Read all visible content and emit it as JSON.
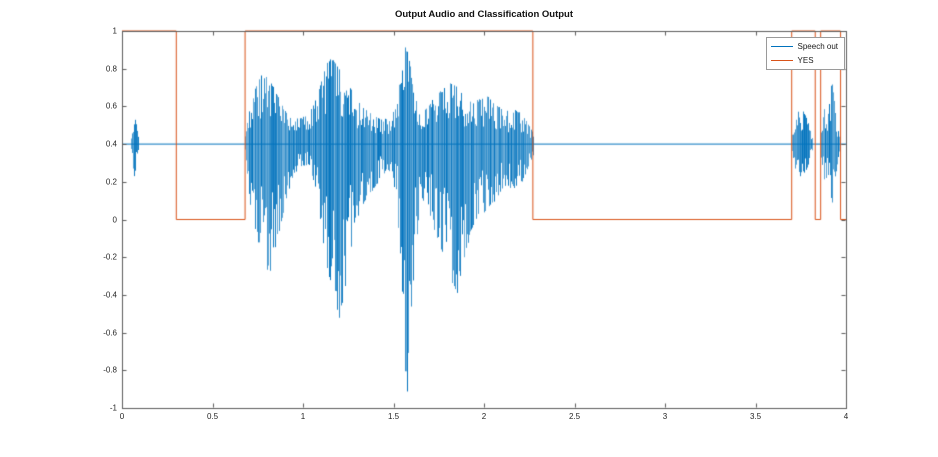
{
  "chart": {
    "title": "Output Audio and Classification Output",
    "legend": {
      "items": [
        {
          "label": "Speech out",
          "color": "#0072BD"
        },
        {
          "label": "YES",
          "color": "#D95319"
        }
      ]
    }
  },
  "chart_data": {
    "type": "line",
    "title": "Output Audio and Classification Output",
    "xlabel": "",
    "ylabel": "",
    "xlim": [
      0,
      4
    ],
    "ylim": [
      -1,
      1
    ],
    "xticks": [
      0,
      0.5,
      1,
      1.5,
      2,
      2.5,
      3,
      3.5,
      4
    ],
    "yticks": [
      -1,
      -0.8,
      -0.6,
      -0.4,
      -0.2,
      0,
      0.2,
      0.4,
      0.6,
      0.8,
      1
    ],
    "grid": false,
    "legend_position": "top-right",
    "axis_color": "#5b5b5b",
    "series": [
      {
        "name": "Speech out",
        "kind": "waveform",
        "color": "#0072BD",
        "baseline": 0.4,
        "bursts": [
          {
            "x": [
              0.05,
              0.065,
              0.075,
              0.09
            ],
            "upper": [
              0.44,
              0.56,
              0.52,
              0.43
            ],
            "lower": [
              0.36,
              0.22,
              0.27,
              0.37
            ]
          },
          {
            "x": [
              0.68,
              0.71,
              0.75,
              0.78,
              0.82,
              0.86,
              0.9,
              0.94,
              0.98,
              1.03,
              1.08,
              1.12,
              1.16,
              1.2,
              1.24,
              1.28,
              1.33,
              1.38,
              1.43,
              1.48,
              1.52,
              1.55,
              1.58,
              1.61,
              1.65,
              1.69,
              1.73,
              1.77,
              1.81,
              1.85,
              1.89,
              1.93,
              1.97,
              2.01,
              2.06,
              2.11,
              2.16,
              2.21,
              2.27
            ],
            "upper": [
              0.46,
              0.62,
              0.74,
              0.78,
              0.73,
              0.66,
              0.58,
              0.53,
              0.54,
              0.56,
              0.66,
              0.82,
              0.86,
              0.8,
              0.74,
              0.66,
              0.6,
              0.56,
              0.53,
              0.54,
              0.62,
              0.93,
              0.9,
              0.68,
              0.56,
              0.6,
              0.66,
              0.7,
              0.73,
              0.71,
              0.66,
              0.62,
              0.64,
              0.66,
              0.62,
              0.57,
              0.59,
              0.56,
              0.46
            ],
            "lower": [
              0.34,
              0.05,
              -0.12,
              -0.27,
              -0.29,
              -0.1,
              0.08,
              0.22,
              0.28,
              0.29,
              0.12,
              -0.22,
              -0.38,
              -0.54,
              -0.34,
              -0.05,
              0.08,
              0.15,
              0.22,
              0.26,
              0.1,
              -0.88,
              -0.96,
              -0.3,
              0.12,
              0.05,
              -0.08,
              -0.2,
              -0.3,
              -0.42,
              -0.22,
              -0.05,
              0.02,
              0.04,
              0.1,
              0.18,
              0.16,
              0.2,
              0.34
            ]
          },
          {
            "x": [
              3.7,
              3.72,
              3.75,
              3.78,
              3.81
            ],
            "upper": [
              0.44,
              0.56,
              0.59,
              0.55,
              0.44
            ],
            "lower": [
              0.36,
              0.26,
              0.22,
              0.26,
              0.35
            ]
          },
          {
            "x": [
              3.86,
              3.88,
              3.9,
              3.92,
              3.94,
              3.96
            ],
            "upper": [
              0.45,
              0.6,
              0.56,
              0.74,
              0.58,
              0.44
            ],
            "lower": [
              0.34,
              0.2,
              0.24,
              0.07,
              0.22,
              0.36
            ]
          }
        ]
      },
      {
        "name": "YES",
        "kind": "step",
        "color": "#D95319",
        "low": 0,
        "high": 1,
        "high_intervals": [
          [
            0,
            0.3
          ],
          [
            0.68,
            2.27
          ],
          [
            3.7,
            3.83
          ],
          [
            3.86,
            3.97
          ]
        ]
      }
    ]
  }
}
